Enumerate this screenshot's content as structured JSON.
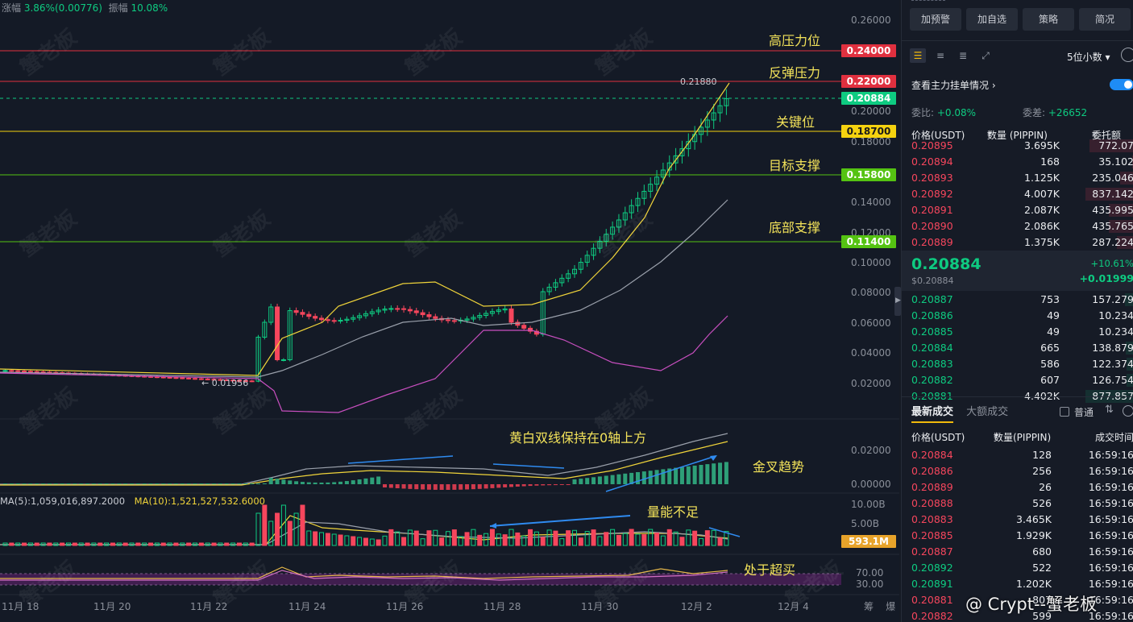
{
  "header": {
    "change_label": "涨幅",
    "change_value": "3.86%(0.00776)",
    "amplitude_label": "振幅",
    "amplitude_value": "10.08%"
  },
  "price_axis": [
    "0.26000",
    "0.20000",
    "0.18000",
    "0.14000",
    "0.12000",
    "0.10000",
    "0.08000",
    "0.06000",
    "0.04000",
    "0.02000"
  ],
  "price_tags": [
    {
      "value": "0.24000",
      "color": "#f6465d"
    },
    {
      "value": "0.22000",
      "color": "#f6465d"
    },
    {
      "value": "0.20884",
      "color": "#0ecb81"
    },
    {
      "value": "0.18700",
      "color": "#f5d20f"
    },
    {
      "value": "0.15800",
      "color": "#55c312"
    },
    {
      "value": "0.11400",
      "color": "#55c312"
    }
  ],
  "level_annotations": [
    "高压力位",
    "反弹压力",
    "关键位",
    "目标支撑",
    "底部支撑"
  ],
  "high_marker": "0.21880",
  "low_marker": "← 0.01956",
  "macd_axis": [
    "0.02000",
    "0.00000"
  ],
  "macd_annotation": "黄白双线保持在0轴上方",
  "golden_cross_annotation": "金叉趋势",
  "volume_ma": {
    "ma5": "MA(5):1,059,016,897.2000",
    "ma10": "MA(10):1,521,527,532.6000"
  },
  "volume_axis": [
    "10.00B",
    "5.00B"
  ],
  "volume_tag": "593.1M",
  "volume_annotation": "量能不足",
  "rsi_axis": [
    "70.00",
    "30.00"
  ],
  "rsi_annotation": "处于超买",
  "x_labels": [
    "11月 18",
    "11月 20",
    "11月 22",
    "11月 24",
    "11月 26",
    "11月 28",
    "11月 30",
    "12月 2",
    "12月 4"
  ],
  "bottom_right_labels": [
    "筹",
    "爆"
  ],
  "watermark": "蟹老板",
  "footer_watermark": "@ Crypt--蟹老板",
  "right_panel": {
    "buttons": [
      "加预警",
      "加自选",
      "策略",
      "简况"
    ],
    "decimal_selector": "5位小数",
    "mainforce_label": "查看主力挂单情况",
    "ratio_label": "委比:",
    "ratio_value": "+0.08%",
    "diff_label": "委差:",
    "diff_value": "+26652",
    "orderbook_headers": [
      "价格(USDT)",
      "数量 (PIPPIN)",
      "委托额"
    ],
    "asks": [
      {
        "price": "0.20895",
        "qty": "3.695K",
        "total": "772.07"
      },
      {
        "price": "0.20894",
        "qty": "168",
        "total": "35.102"
      },
      {
        "price": "0.20893",
        "qty": "1.125K",
        "total": "235.046"
      },
      {
        "price": "0.20892",
        "qty": "4.007K",
        "total": "837.142"
      },
      {
        "price": "0.20891",
        "qty": "2.087K",
        "total": "435.995"
      },
      {
        "price": "0.20890",
        "qty": "2.086K",
        "total": "435.765"
      },
      {
        "price": "0.20889",
        "qty": "1.375K",
        "total": "287.224"
      }
    ],
    "mid_price": "0.20884",
    "mid_price_small": "$0.20884",
    "mid_change_pct": "+10.61%",
    "mid_change_abs": "+0.01999",
    "bids": [
      {
        "price": "0.20887",
        "qty": "753",
        "total": "157.279"
      },
      {
        "price": "0.20886",
        "qty": "49",
        "total": "10.234"
      },
      {
        "price": "0.20885",
        "qty": "49",
        "total": "10.234"
      },
      {
        "price": "0.20884",
        "qty": "665",
        "total": "138.879"
      },
      {
        "price": "0.20883",
        "qty": "586",
        "total": "122.374"
      },
      {
        "price": "0.20882",
        "qty": "607",
        "total": "126.754"
      },
      {
        "price": "0.20881",
        "qty": "4.402K",
        "total": "877.857"
      }
    ],
    "trades_tab": "最新成交",
    "big_trades_tab": "大额成交",
    "normal_label": "普通",
    "trades_headers": [
      "价格(USDT)",
      "数量(PIPPIN)",
      "成交时间"
    ],
    "trades": [
      {
        "price": "0.20884",
        "qty": "128",
        "time": "16:59:16",
        "side": "sell"
      },
      {
        "price": "0.20886",
        "qty": "256",
        "time": "16:59:16",
        "side": "sell"
      },
      {
        "price": "0.20889",
        "qty": "26",
        "time": "16:59:16",
        "side": "sell"
      },
      {
        "price": "0.20888",
        "qty": "526",
        "time": "16:59:16",
        "side": "sell"
      },
      {
        "price": "0.20883",
        "qty": "3.465K",
        "time": "16:59:16",
        "side": "sell"
      },
      {
        "price": "0.20885",
        "qty": "1.929K",
        "time": "16:59:16",
        "side": "sell"
      },
      {
        "price": "0.20887",
        "qty": "680",
        "time": "16:59:16",
        "side": "sell"
      },
      {
        "price": "0.20892",
        "qty": "522",
        "time": "16:59:16",
        "side": "buy"
      },
      {
        "price": "0.20891",
        "qty": "1.202K",
        "time": "16:59:16",
        "side": "buy"
      },
      {
        "price": "0.20881",
        "qty": "807",
        "time": "16:59:16",
        "side": "sell"
      },
      {
        "price": "0.20882",
        "qty": "599",
        "time": "16:59:16",
        "side": "sell"
      }
    ]
  },
  "colors": {
    "up": "#0ecb81",
    "down": "#f6465d",
    "accent": "#f0b90b",
    "annotation": "#f3e35a"
  }
}
